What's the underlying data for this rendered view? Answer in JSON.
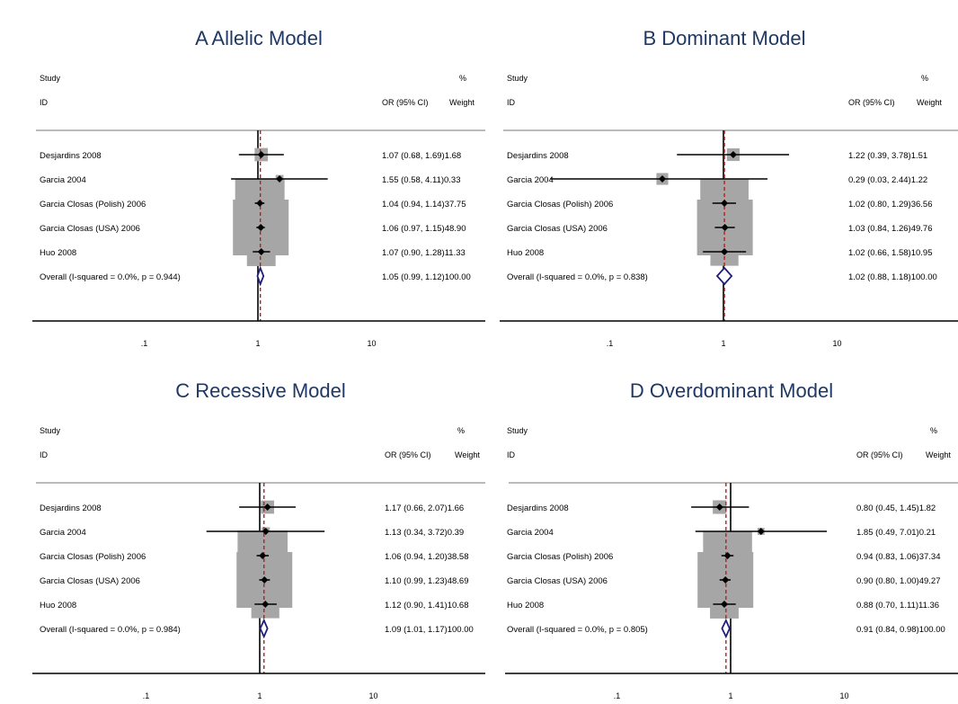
{
  "chart_data": [
    {
      "type": "forest",
      "title": "A  Allelic Model",
      "headers": {
        "study": "Study",
        "id": "ID",
        "or": "OR (95% CI)",
        "pct": "%",
        "weight": "Weight"
      },
      "studies": [
        {
          "label": "Desjardins 2008",
          "or": 1.07,
          "lo": 0.68,
          "hi": 1.69,
          "weight": 1.68,
          "text": "1.07 (0.68, 1.69)1.68"
        },
        {
          "label": "Garcia 2004",
          "or": 1.55,
          "lo": 0.58,
          "hi": 4.11,
          "weight": 0.33,
          "text": "1.55 (0.58, 4.11)0.33"
        },
        {
          "label": "Garcia Closas (Polish) 2006",
          "or": 1.04,
          "lo": 0.94,
          "hi": 1.14,
          "weight": 37.75,
          "text": "1.04 (0.94, 1.14)37.75"
        },
        {
          "label": "Garcia Closas (USA) 2006",
          "or": 1.06,
          "lo": 0.97,
          "hi": 1.15,
          "weight": 48.9,
          "text": "1.06 (0.97, 1.15)48.90"
        },
        {
          "label": "Huo 2008",
          "or": 1.07,
          "lo": 0.9,
          "hi": 1.28,
          "weight": 11.33,
          "text": "1.07 (0.90, 1.28)11.33"
        }
      ],
      "overall": {
        "label": "Overall  (I-squared = 0.0%, p = 0.944)",
        "or": 1.05,
        "lo": 0.99,
        "hi": 1.12,
        "weight": 100.0,
        "text": "1.05 (0.99, 1.12)100.00"
      },
      "x_scale": "log",
      "x_ticks": [
        {
          "value": 0.1,
          "label": ".1"
        },
        {
          "value": 1,
          "label": "1"
        },
        {
          "value": 10,
          "label": "10"
        }
      ],
      "xlim": [
        0.03,
        50
      ]
    },
    {
      "type": "forest",
      "title": "B  Dominant Model",
      "headers": {
        "study": "Study",
        "id": "ID",
        "or": "OR (95% CI)",
        "pct": "%",
        "weight": "Weight"
      },
      "studies": [
        {
          "label": "Desjardins 2008",
          "or": 1.22,
          "lo": 0.39,
          "hi": 3.78,
          "weight": 1.51,
          "text": "1.22 (0.39, 3.78)1.51"
        },
        {
          "label": "Garcia 2004",
          "or": 0.29,
          "lo": 0.03,
          "hi": 2.44,
          "weight": 1.22,
          "text": "0.29 (0.03, 2.44)1.22"
        },
        {
          "label": "Garcia Closas (Polish) 2006",
          "or": 1.02,
          "lo": 0.8,
          "hi": 1.29,
          "weight": 36.56,
          "text": "1.02 (0.80, 1.29)36.56"
        },
        {
          "label": "Garcia Closas (USA) 2006",
          "or": 1.03,
          "lo": 0.84,
          "hi": 1.26,
          "weight": 49.76,
          "text": "1.03 (0.84, 1.26)49.76"
        },
        {
          "label": "Huo 2008",
          "or": 1.02,
          "lo": 0.66,
          "hi": 1.58,
          "weight": 10.95,
          "text": "1.02 (0.66, 1.58)10.95"
        }
      ],
      "overall": {
        "label": "Overall  (I-squared = 0.0%, p = 0.838)",
        "or": 1.02,
        "lo": 0.88,
        "hi": 1.18,
        "weight": 100.0,
        "text": "1.02 (0.88, 1.18)100.00"
      },
      "x_scale": "log",
      "x_ticks": [
        {
          "value": 0.1,
          "label": ".1"
        },
        {
          "value": 1,
          "label": "1"
        },
        {
          "value": 10,
          "label": "10"
        }
      ],
      "xlim": [
        0.03,
        33
      ]
    },
    {
      "type": "forest",
      "title": "C  Recessive Model",
      "headers": {
        "study": "Study",
        "id": "ID",
        "or": "OR (95% CI)",
        "pct": "%",
        "weight": "Weight"
      },
      "studies": [
        {
          "label": "Desjardins 2008",
          "or": 1.17,
          "lo": 0.66,
          "hi": 2.07,
          "weight": 1.66,
          "text": "1.17 (0.66, 2.07)1.66"
        },
        {
          "label": "Garcia 2004",
          "or": 1.13,
          "lo": 0.34,
          "hi": 3.72,
          "weight": 0.39,
          "text": "1.13 (0.34, 3.72)0.39"
        },
        {
          "label": "Garcia Closas (Polish) 2006",
          "or": 1.06,
          "lo": 0.94,
          "hi": 1.2,
          "weight": 38.58,
          "text": "1.06 (0.94, 1.20)38.58"
        },
        {
          "label": "Garcia Closas (USA) 2006",
          "or": 1.1,
          "lo": 0.99,
          "hi": 1.23,
          "weight": 48.69,
          "text": "1.10 (0.99, 1.23)48.69"
        },
        {
          "label": "Huo 2008",
          "or": 1.12,
          "lo": 0.9,
          "hi": 1.41,
          "weight": 10.68,
          "text": "1.12 (0.90, 1.41)10.68"
        }
      ],
      "overall": {
        "label": "Overall  (I-squared = 0.0%, p = 0.984)",
        "or": 1.09,
        "lo": 1.01,
        "hi": 1.17,
        "weight": 100.0,
        "text": "1.09 (1.01, 1.17)100.00"
      },
      "x_scale": "log",
      "x_ticks": [
        {
          "value": 0.1,
          "label": ".1"
        },
        {
          "value": 1,
          "label": "1"
        },
        {
          "value": 10,
          "label": "10"
        }
      ],
      "xlim": [
        0.03,
        50
      ]
    },
    {
      "type": "forest",
      "title": "D  Overdominant Model",
      "headers": {
        "study": "Study",
        "id": "ID",
        "or": "OR (95% CI)",
        "pct": "%",
        "weight": "Weight"
      },
      "studies": [
        {
          "label": "Desjardins 2008",
          "or": 0.8,
          "lo": 0.45,
          "hi": 1.45,
          "weight": 1.82,
          "text": "0.80 (0.45, 1.45)1.82"
        },
        {
          "label": "Garcia 2004",
          "or": 1.85,
          "lo": 0.49,
          "hi": 7.01,
          "weight": 0.21,
          "text": "1.85 (0.49, 7.01)0.21"
        },
        {
          "label": "Garcia Closas (Polish) 2006",
          "or": 0.94,
          "lo": 0.83,
          "hi": 1.06,
          "weight": 37.34,
          "text": "0.94 (0.83, 1.06)37.34"
        },
        {
          "label": "Garcia Closas (USA) 2006",
          "or": 0.9,
          "lo": 0.8,
          "hi": 1.0,
          "weight": 49.27,
          "text": "0.90 (0.80, 1.00)49.27"
        },
        {
          "label": "Huo 2008",
          "or": 0.88,
          "lo": 0.7,
          "hi": 1.11,
          "weight": 11.36,
          "text": "0.88 (0.70, 1.11)11.36"
        }
      ],
      "overall": {
        "label": "Overall  (I-squared = 0.0%, p = 0.805)",
        "or": 0.91,
        "lo": 0.84,
        "hi": 0.98,
        "weight": 100.0,
        "text": "0.91 (0.84, 0.98)100.00"
      },
      "x_scale": "log",
      "x_ticks": [
        {
          "value": 0.1,
          "label": ".1"
        },
        {
          "value": 1,
          "label": "1"
        },
        {
          "value": 10,
          "label": "10"
        }
      ],
      "xlim": [
        0.03,
        33
      ]
    }
  ]
}
